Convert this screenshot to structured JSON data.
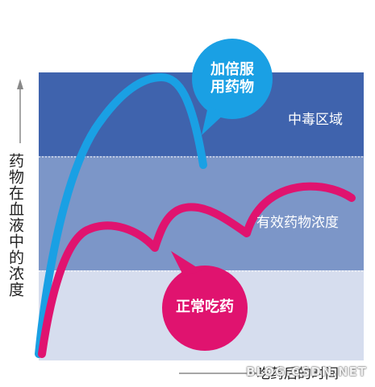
{
  "axes": {
    "y_label": "药物在血液中的浓度",
    "x_label": "吃药后的时间"
  },
  "zones": [
    {
      "name": "toxic",
      "label": "中毒区域",
      "color": "#3f63ad"
    },
    {
      "name": "effective",
      "label": "有效药物浓度",
      "color": "#7c96c8"
    },
    {
      "name": "low",
      "label": "",
      "color": "#d6ddee"
    }
  ],
  "bubbles": {
    "double_dose": {
      "label_line1": "加倍服",
      "label_line2": "用药物",
      "color": "#1aa0e4"
    },
    "normal_dose": {
      "label": "正常吃药",
      "color": "#e0136f"
    }
  },
  "curves": {
    "double_dose_color": "#1aa0e4",
    "normal_dose_color": "#e0136f"
  },
  "watermark": "BLOG.CSDN.NET"
}
